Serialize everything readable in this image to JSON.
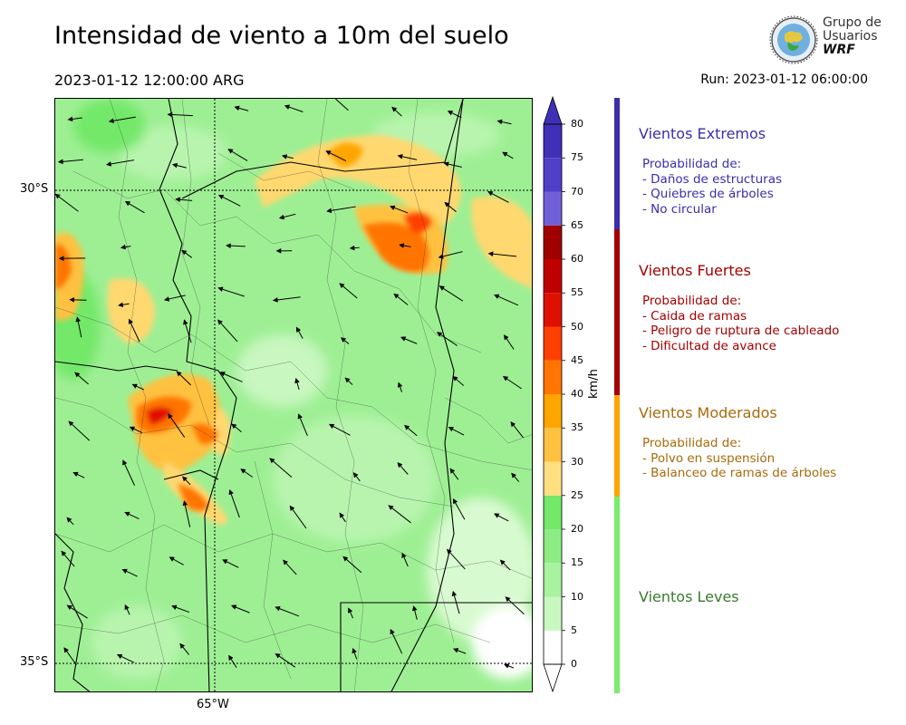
{
  "header": {
    "title": "Intensidad de viento a 10m del suelo",
    "valid_time": "2023-01-12 12:00:00 ARG",
    "run": "Run: 2023-01-12 06:00:00"
  },
  "logo": {
    "line1": "Grupo de",
    "line2": "Usuarios",
    "line3": "WRF"
  },
  "map": {
    "lat_labels": [
      "30°S",
      "35°S"
    ],
    "lon_labels": [
      "65°W"
    ]
  },
  "colorbar": {
    "unit": "km/h",
    "ticks": [
      "0",
      "5",
      "10",
      "15",
      "20",
      "25",
      "30",
      "35",
      "40",
      "45",
      "50",
      "55",
      "60",
      "65",
      "70",
      "75",
      "80"
    ],
    "colors": [
      "#ffffff",
      "#c8f7c0",
      "#a9f2a0",
      "#8eec85",
      "#73e869",
      "#ffe080",
      "#ffc140",
      "#ffa500",
      "#ff7500",
      "#ff4000",
      "#e01000",
      "#c00000",
      "#a00000",
      "#7060d8",
      "#5040c8",
      "#4030b8"
    ]
  },
  "legend": [
    {
      "title": "Vientos Extremos",
      "color": "#3a2eaa",
      "lines": [
        "Probabilidad de:",
        "- Daños de estructuras",
        "- Quiebres de árboles",
        "- No circular"
      ]
    },
    {
      "title": "Vientos Fuertes",
      "color": "#a30000",
      "lines": [
        "Probabilidad de:",
        "- Caida de ramas",
        "- Peligro de ruptura de cableado",
        "- Dificultad de avance"
      ]
    },
    {
      "title": "Vientos Moderados",
      "color": "#a86a0a",
      "lines": [
        "Probabilidad de:",
        "- Polvo en suspensión",
        "- Balanceo de ramas de árboles"
      ]
    },
    {
      "title": "Vientos Leves",
      "color": "#3a7a2e",
      "lines": []
    }
  ],
  "legend_bar_colors": [
    "#3a2eaa",
    "#a30000",
    "#ffa500",
    "#78ee6c"
  ]
}
